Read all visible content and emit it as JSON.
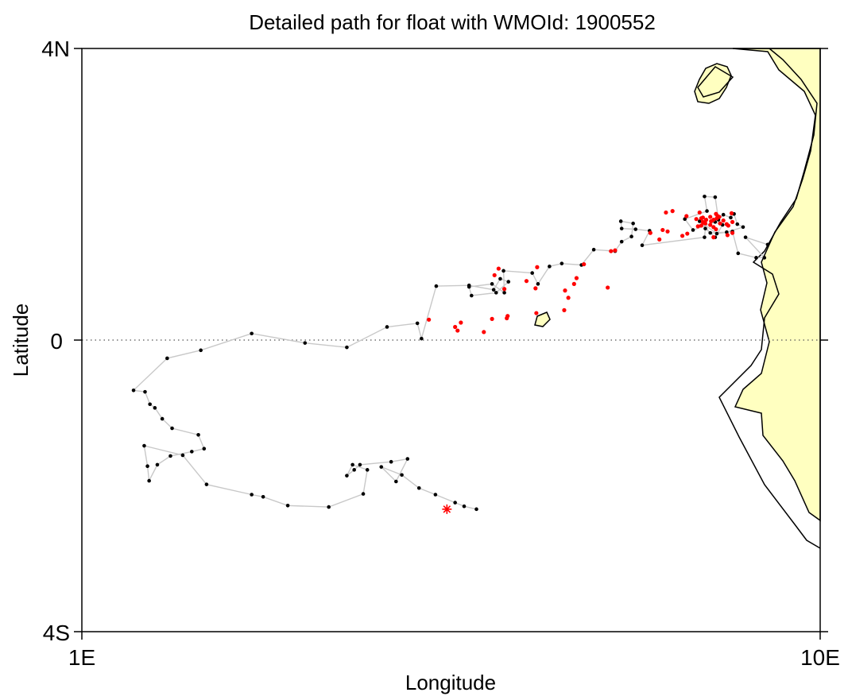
{
  "chart_data": {
    "type": "scatter",
    "title": "Detailed path for float with WMOId: 1900552",
    "xlabel": "Longitude",
    "ylabel": "Latitude",
    "xlim": [
      1,
      10
    ],
    "ylim": [
      -4,
      4
    ],
    "x_ticks": [
      {
        "value": 1,
        "label": "1E"
      },
      {
        "value": 10,
        "label": "10E"
      }
    ],
    "y_ticks": [
      {
        "value": 4,
        "label": "4N"
      },
      {
        "value": 0,
        "label": "0"
      },
      {
        "value": -4,
        "label": "4S"
      }
    ],
    "equator_line": {
      "value": 0,
      "style": "dotted"
    },
    "grid": false,
    "legend": "none",
    "colors": {
      "path_line": "#c8c8c8",
      "black_points": "#000000",
      "red_points": "#ff0000",
      "land_fill": "#ffffc0",
      "coastline": "#000000",
      "end_marker": "#ff0000"
    },
    "series": [
      {
        "color": "#000000",
        "path": [
          [
            5.81,
            -2.32
          ],
          [
            5.66,
            -2.28
          ],
          [
            5.55,
            -2.23
          ],
          [
            5.31,
            -2.12
          ],
          [
            5.11,
            -2.03
          ],
          [
            4.9,
            -1.85
          ],
          [
            4.65,
            -1.74
          ],
          [
            4.83,
            -1.94
          ],
          [
            4.97,
            -1.63
          ],
          [
            4.77,
            -1.67
          ],
          [
            4.39,
            -1.71
          ],
          [
            4.32,
            -1.78
          ],
          [
            4.23,
            -1.86
          ],
          [
            4.3,
            -1.71
          ],
          [
            4.48,
            -1.78
          ],
          [
            4.43,
            -2.11
          ],
          [
            4.01,
            -2.29
          ],
          [
            3.51,
            -2.27
          ],
          [
            3.21,
            -2.15
          ],
          [
            3.07,
            -2.12
          ],
          [
            2.52,
            -1.98
          ],
          [
            2.23,
            -1.58
          ],
          [
            1.76,
            -1.45
          ],
          [
            1.8,
            -1.73
          ],
          [
            1.82,
            -1.93
          ],
          [
            1.92,
            -1.71
          ],
          [
            2.08,
            -1.59
          ],
          [
            2.34,
            -1.53
          ],
          [
            2.49,
            -1.49
          ],
          [
            2.42,
            -1.3
          ],
          [
            2.1,
            -1.21
          ],
          [
            1.98,
            -1.08
          ],
          [
            1.89,
            -0.93
          ],
          [
            1.83,
            -0.88
          ],
          [
            1.77,
            -0.71
          ],
          [
            1.63,
            -0.69
          ],
          [
            2.04,
            -0.25
          ],
          [
            2.45,
            -0.14
          ],
          [
            3.07,
            0.09
          ],
          [
            3.72,
            -0.04
          ],
          [
            4.23,
            -0.1
          ],
          [
            4.72,
            0.18
          ],
          [
            5.09,
            0.23
          ],
          [
            5.14,
            0.02
          ],
          [
            5.32,
            0.74
          ],
          [
            5.72,
            0.75
          ],
          [
            6.02,
            0.69
          ],
          [
            6.1,
            0.84
          ],
          [
            6.2,
            0.8
          ],
          [
            6.05,
            0.65
          ],
          [
            5.75,
            0.61
          ],
          [
            5.72,
            0.73
          ],
          [
            6.0,
            0.77
          ],
          [
            6.15,
            0.65
          ],
          [
            6.14,
            0.95
          ],
          [
            6.49,
            0.92
          ],
          [
            6.56,
            0.77
          ],
          [
            6.7,
            1.01
          ],
          [
            6.85,
            1.05
          ],
          [
            7.09,
            1.03
          ],
          [
            7.24,
            1.24
          ],
          [
            7.5,
            1.22
          ],
          [
            7.58,
            1.35
          ],
          [
            7.7,
            1.42
          ],
          [
            7.72,
            1.6
          ],
          [
            7.57,
            1.63
          ],
          [
            7.58,
            1.53
          ],
          [
            7.75,
            1.52
          ],
          [
            7.92,
            1.5
          ],
          [
            7.83,
            1.3
          ],
          [
            8.59,
            1.41
          ],
          [
            8.6,
            1.53
          ],
          [
            8.72,
            1.41
          ],
          [
            8.81,
            1.58
          ],
          [
            8.72,
            1.62
          ],
          [
            8.45,
            1.51
          ],
          [
            8.35,
            1.66
          ],
          [
            8.62,
            1.77
          ],
          [
            8.59,
            1.97
          ],
          [
            8.72,
            1.96
          ],
          [
            8.76,
            1.65
          ],
          [
            8.82,
            1.72
          ],
          [
            8.91,
            1.68
          ],
          [
            8.95,
            1.73
          ],
          [
            8.99,
            1.59
          ],
          [
            9.06,
            1.55
          ],
          [
            8.86,
            1.48
          ],
          [
            8.66,
            1.47
          ],
          [
            8.53,
            1.63
          ],
          [
            8.74,
            1.46
          ],
          [
            8.93,
            1.49
          ],
          [
            9.0,
            1.19
          ],
          [
            9.22,
            1.13
          ],
          [
            9.32,
            1.13
          ],
          [
            9.09,
            1.41
          ],
          [
            9.36,
            1.31
          ]
        ]
      },
      {
        "color": "#ff0000",
        "points": [
          [
            6.03,
            0.89
          ],
          [
            6.53,
            0.71
          ],
          [
            6.08,
            0.98
          ],
          [
            6.55,
            1.0
          ],
          [
            6.42,
            0.81
          ],
          [
            7.0,
            0.77
          ],
          [
            7.03,
            0.85
          ],
          [
            7.12,
            1.04
          ],
          [
            7.5,
            1.23
          ],
          [
            7.45,
            1.22
          ],
          [
            7.93,
            1.47
          ],
          [
            8.32,
            1.43
          ],
          [
            8.08,
            1.51
          ],
          [
            8.14,
            1.49
          ],
          [
            8.04,
            1.38
          ],
          [
            8.38,
            1.46
          ],
          [
            8.6,
            1.6
          ],
          [
            8.58,
            1.61
          ],
          [
            8.7,
            1.65
          ],
          [
            8.86,
            1.59
          ],
          [
            8.75,
            1.7
          ],
          [
            8.12,
            1.75
          ],
          [
            8.37,
            1.7
          ],
          [
            8.2,
            1.77
          ],
          [
            8.53,
            1.75
          ],
          [
            8.66,
            1.69
          ],
          [
            8.74,
            1.67
          ],
          [
            8.92,
            1.74
          ],
          [
            8.78,
            1.6
          ],
          [
            8.67,
            1.63
          ],
          [
            8.93,
            1.62
          ],
          [
            8.82,
            1.64
          ],
          [
            8.55,
            1.57
          ],
          [
            8.51,
            1.56
          ],
          [
            8.49,
            1.66
          ],
          [
            8.57,
            1.62
          ],
          [
            8.61,
            1.65
          ],
          [
            8.66,
            1.58
          ],
          [
            8.77,
            1.69
          ],
          [
            8.73,
            1.73
          ],
          [
            8.57,
            1.68
          ],
          [
            8.55,
            1.67
          ],
          [
            8.7,
            1.55
          ],
          [
            8.88,
            1.57
          ],
          [
            8.93,
            1.47
          ],
          [
            8.87,
            1.44
          ],
          [
            8.73,
            1.52
          ],
          [
            8.7,
            1.41
          ],
          [
            7.41,
            0.72
          ],
          [
            6.93,
            0.58
          ],
          [
            6.89,
            0.68
          ],
          [
            6.88,
            0.41
          ],
          [
            6.54,
            0.37
          ],
          [
            6.15,
            0.7
          ],
          [
            6.19,
            0.33
          ],
          [
            6.18,
            0.3
          ],
          [
            6.0,
            0.29
          ],
          [
            5.9,
            0.11
          ],
          [
            5.23,
            0.28
          ],
          [
            5.62,
            0.24
          ],
          [
            5.55,
            0.18
          ],
          [
            5.58,
            0.13
          ]
        ]
      }
    ],
    "end_marker": {
      "x": 5.45,
      "y": -2.32,
      "symbol": "asterisk",
      "color": "#ff0000"
    }
  }
}
